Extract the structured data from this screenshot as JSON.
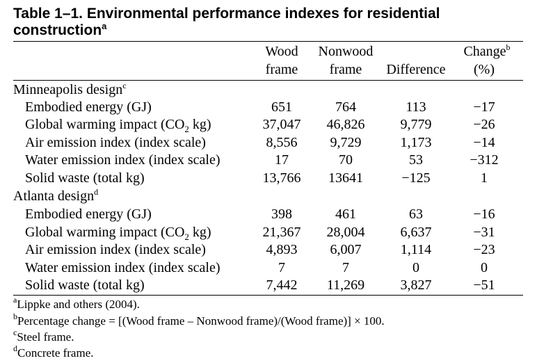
{
  "title": {
    "text": "Table 1–1. Environmental performance indexes for residential construction",
    "sup": "a"
  },
  "columns": [
    {
      "line1": "Wood",
      "line2": "frame"
    },
    {
      "line1": "Nonwood",
      "line2": "frame"
    },
    {
      "line1": "",
      "line2": "Difference"
    },
    {
      "line1": "Change",
      "line1_sup": "b",
      "line2": "(%)"
    }
  ],
  "sections": [
    {
      "label": "Minneapolis design",
      "sup": "c",
      "rows": [
        {
          "label": "Embodied energy (GJ)",
          "values": [
            "651",
            "764",
            "113",
            "−17"
          ]
        },
        {
          "label_pre": "Global warming impact (CO",
          "label_sub": "2",
          "label_post": " kg)",
          "values": [
            "37,047",
            "46,826",
            "9,779",
            "−26"
          ]
        },
        {
          "label": "Air emission index (index scale)",
          "values": [
            "8,556",
            "9,729",
            "1,173",
            "−14"
          ]
        },
        {
          "label": "Water emission index (index scale)",
          "values": [
            "17",
            "70",
            "53",
            "−312"
          ]
        },
        {
          "label": "Solid waste (total kg)",
          "values": [
            "13,766",
            "13641",
            "−125",
            "1"
          ]
        }
      ]
    },
    {
      "label": "Atlanta design",
      "sup": "d",
      "rows": [
        {
          "label": "Embodied energy (GJ)",
          "values": [
            "398",
            "461",
            "63",
            "−16"
          ]
        },
        {
          "label_pre": "Global warming impact (CO",
          "label_sub": "2",
          "label_post": " kg)",
          "values": [
            "21,367",
            "28,004",
            "6,637",
            "−31"
          ]
        },
        {
          "label": "Air emission index (index scale)",
          "values": [
            "4,893",
            "6,007",
            "1,114",
            "−23"
          ]
        },
        {
          "label": "Water emission index (index scale)",
          "values": [
            "7",
            "7",
            "0",
            "0"
          ]
        },
        {
          "label": "Solid waste (total kg)",
          "values": [
            "7,442",
            "11,269",
            "3,827",
            "−51"
          ]
        }
      ]
    }
  ],
  "footnotes": [
    {
      "mark": "a",
      "text": "Lippke and others (2004)."
    },
    {
      "mark": "b",
      "text": "Percentage change = [(Wood frame – Nonwood frame)/(Wood frame)] × 100."
    },
    {
      "mark": "c",
      "text": "Steel frame."
    },
    {
      "mark": "d",
      "text": "Concrete frame."
    }
  ]
}
